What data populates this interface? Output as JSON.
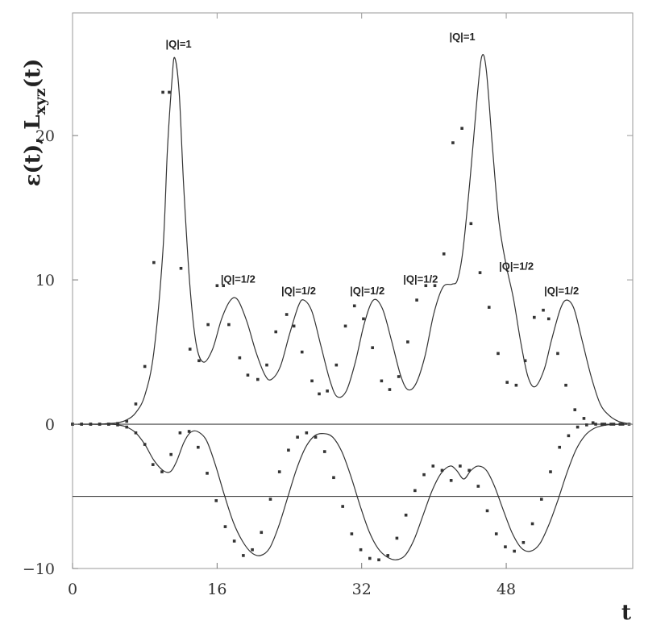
{
  "chart_data": {
    "type": "line",
    "title": "",
    "ylabel": "ε(t), L_xyz(t)",
    "ylabel_main": "ε(t), L",
    "ylabel_sub": "xyz",
    "ylabel_tail": "(t)",
    "xlabel": "t",
    "xlim": [
      0,
      62
    ],
    "ylim": [
      -10,
      28.5
    ],
    "x_ticks": [
      0,
      16,
      32,
      48
    ],
    "x_tick_labels": [
      "0",
      "16",
      "32",
      "48"
    ],
    "y_ticks": [
      -10,
      0,
      10,
      20
    ],
    "y_tick_labels": [
      "−10",
      "0",
      "10",
      "20"
    ],
    "horizontal_lines": [
      0,
      -5
    ],
    "grid": false,
    "legend": "none",
    "annotations": [
      {
        "text": "|Q|=1",
        "x": 10.3,
        "y": 26.1
      },
      {
        "text": "|Q|=1/2",
        "x": 16.4,
        "y": 9.8
      },
      {
        "text": "|Q|=1/2",
        "x": 23.1,
        "y": 9.0
      },
      {
        "text": "|Q|=1/2",
        "x": 30.7,
        "y": 9.0
      },
      {
        "text": "|Q|=1/2",
        "x": 36.6,
        "y": 9.8
      },
      {
        "text": "|Q|=1",
        "x": 41.7,
        "y": 26.6
      },
      {
        "text": "|Q|=1/2",
        "x": 47.2,
        "y": 10.7
      },
      {
        "text": "|Q|=1/2",
        "x": 52.2,
        "y": 9.0
      }
    ],
    "series": [
      {
        "values": [
          [
            0,
            0
          ],
          [
            1,
            0
          ],
          [
            2,
            0
          ],
          [
            3,
            0
          ],
          [
            4,
            0.05
          ],
          [
            5,
            0.1
          ],
          [
            6,
            0.3
          ],
          [
            7,
            0.8
          ],
          [
            8,
            2.0
          ],
          [
            9,
            5.0
          ],
          [
            10,
            12.0
          ],
          [
            10.5,
            19.0
          ],
          [
            11,
            23.8
          ],
          [
            11.3,
            25.4
          ],
          [
            11.8,
            23.0
          ],
          [
            12.3,
            16.5
          ],
          [
            13,
            9.5
          ],
          [
            13.7,
            5.5
          ],
          [
            14.5,
            4.3
          ],
          [
            15.5,
            5.2
          ],
          [
            16.5,
            7.3
          ],
          [
            17.5,
            8.6
          ],
          [
            18.3,
            8.6
          ],
          [
            19.3,
            7.1
          ],
          [
            20.3,
            5.0
          ],
          [
            21.3,
            3.4
          ],
          [
            22,
            3.1
          ],
          [
            23,
            4.0
          ],
          [
            24,
            6.2
          ],
          [
            25,
            8.2
          ],
          [
            25.6,
            8.6
          ],
          [
            26.5,
            7.8
          ],
          [
            27.5,
            5.4
          ],
          [
            28.5,
            3.0
          ],
          [
            29.3,
            1.9
          ],
          [
            30.3,
            2.3
          ],
          [
            31.3,
            4.3
          ],
          [
            32.3,
            7.0
          ],
          [
            33.3,
            8.6
          ],
          [
            34.3,
            8.0
          ],
          [
            35.3,
            5.8
          ],
          [
            36.3,
            3.4
          ],
          [
            37.1,
            2.4
          ],
          [
            38,
            2.8
          ],
          [
            39,
            4.7
          ],
          [
            40,
            7.7
          ],
          [
            41,
            9.5
          ],
          [
            42,
            9.7
          ],
          [
            42.6,
            10.0
          ],
          [
            43.2,
            12.0
          ],
          [
            44,
            17.0
          ],
          [
            44.8,
            22.8
          ],
          [
            45.3,
            25.5
          ],
          [
            45.8,
            24.5
          ],
          [
            46.5,
            19.0
          ],
          [
            47.2,
            14.0
          ],
          [
            48,
            11.0
          ],
          [
            48.8,
            8.7
          ],
          [
            49.6,
            5.7
          ],
          [
            50.4,
            3.3
          ],
          [
            51.2,
            2.6
          ],
          [
            52.2,
            3.8
          ],
          [
            53,
            5.8
          ],
          [
            54,
            8.0
          ],
          [
            54.7,
            8.6
          ],
          [
            55.5,
            8.0
          ],
          [
            56.4,
            5.8
          ],
          [
            57.4,
            3.3
          ],
          [
            58.4,
            1.4
          ],
          [
            59.4,
            0.6
          ],
          [
            60.4,
            0.2
          ],
          [
            61.4,
            0.05
          ],
          [
            62,
            0
          ]
        ]
      },
      {
        "values": [
          [
            0,
            0
          ],
          [
            4,
            0
          ],
          [
            5,
            -0.05
          ],
          [
            6,
            -0.2
          ],
          [
            7,
            -0.6
          ],
          [
            8,
            -1.4
          ],
          [
            9,
            -2.5
          ],
          [
            10,
            -3.2
          ],
          [
            10.8,
            -3.3
          ],
          [
            11.5,
            -2.6
          ],
          [
            12.3,
            -1.3
          ],
          [
            13,
            -0.6
          ],
          [
            13.8,
            -0.5
          ],
          [
            14.8,
            -1.1
          ],
          [
            15.8,
            -2.8
          ],
          [
            16.8,
            -4.9
          ],
          [
            17.8,
            -6.8
          ],
          [
            18.8,
            -8.1
          ],
          [
            19.8,
            -8.9
          ],
          [
            20.8,
            -9.1
          ],
          [
            21.8,
            -8.6
          ],
          [
            22.8,
            -7.1
          ],
          [
            23.8,
            -5.1
          ],
          [
            24.8,
            -3.1
          ],
          [
            25.8,
            -1.6
          ],
          [
            26.8,
            -0.8
          ],
          [
            27.8,
            -0.65
          ],
          [
            28.8,
            -0.9
          ],
          [
            29.8,
            -1.9
          ],
          [
            30.8,
            -3.6
          ],
          [
            31.8,
            -5.6
          ],
          [
            32.8,
            -7.4
          ],
          [
            33.8,
            -8.6
          ],
          [
            34.8,
            -9.2
          ],
          [
            35.8,
            -9.4
          ],
          [
            36.8,
            -9.1
          ],
          [
            37.8,
            -8.0
          ],
          [
            38.8,
            -6.3
          ],
          [
            39.8,
            -4.6
          ],
          [
            40.8,
            -3.4
          ],
          [
            41.8,
            -2.9
          ],
          [
            42.5,
            -3.2
          ],
          [
            43.3,
            -3.8
          ],
          [
            44.1,
            -3.2
          ],
          [
            44.9,
            -2.9
          ],
          [
            45.8,
            -3.2
          ],
          [
            46.7,
            -4.3
          ],
          [
            47.7,
            -6.0
          ],
          [
            48.7,
            -7.6
          ],
          [
            49.7,
            -8.6
          ],
          [
            50.7,
            -8.8
          ],
          [
            51.7,
            -8.3
          ],
          [
            52.7,
            -7.0
          ],
          [
            53.7,
            -5.3
          ],
          [
            54.7,
            -3.4
          ],
          [
            55.7,
            -1.8
          ],
          [
            56.7,
            -0.8
          ],
          [
            57.7,
            -0.3
          ],
          [
            58.7,
            -0.1
          ],
          [
            59.7,
            -0.02
          ],
          [
            62,
            0
          ]
        ]
      }
    ],
    "markers": [
      [
        [
          0,
          0
        ],
        [
          1,
          0
        ],
        [
          2,
          0
        ],
        [
          3,
          0
        ],
        [
          4,
          0
        ],
        [
          5,
          0.05
        ],
        [
          6,
          0.2
        ],
        [
          7,
          1.4
        ],
        [
          8,
          4.0
        ],
        [
          9,
          11.2
        ],
        [
          10,
          23.0
        ],
        [
          10.7,
          23.0
        ],
        [
          12,
          10.8
        ],
        [
          13,
          5.2
        ],
        [
          14,
          4.4
        ],
        [
          15,
          6.9
        ],
        [
          16,
          9.6
        ],
        [
          16.7,
          9.6
        ],
        [
          17.3,
          6.9
        ],
        [
          18.5,
          4.6
        ],
        [
          19.4,
          3.4
        ],
        [
          20.5,
          3.1
        ],
        [
          21.5,
          4.1
        ],
        [
          22.5,
          6.4
        ],
        [
          23.7,
          7.6
        ],
        [
          24.5,
          6.8
        ],
        [
          25.4,
          5.0
        ],
        [
          26.5,
          3.0
        ],
        [
          27.3,
          2.1
        ],
        [
          28.2,
          2.3
        ],
        [
          29.2,
          4.1
        ],
        [
          30.2,
          6.8
        ],
        [
          31.2,
          8.2
        ],
        [
          32.2,
          7.3
        ],
        [
          33.2,
          5.3
        ],
        [
          34.2,
          3.0
        ],
        [
          35.1,
          2.4
        ],
        [
          36.1,
          3.3
        ],
        [
          37.1,
          5.7
        ],
        [
          38.1,
          8.6
        ],
        [
          39.1,
          9.6
        ],
        [
          40.1,
          9.6
        ],
        [
          41.1,
          11.8
        ],
        [
          42.1,
          19.5
        ],
        [
          43.1,
          20.5
        ],
        [
          44.1,
          13.9
        ],
        [
          45.1,
          10.5
        ],
        [
          46.1,
          8.1
        ],
        [
          47.1,
          4.9
        ],
        [
          48.1,
          2.9
        ],
        [
          49.1,
          2.7
        ],
        [
          50.1,
          4.4
        ],
        [
          51.1,
          7.4
        ],
        [
          52.1,
          7.9
        ],
        [
          52.7,
          7.3
        ],
        [
          53.7,
          4.9
        ],
        [
          54.6,
          2.7
        ],
        [
          55.6,
          1.0
        ],
        [
          56.6,
          0.4
        ],
        [
          57.6,
          0.1
        ],
        [
          58.6,
          0
        ],
        [
          59.6,
          0
        ],
        [
          60.6,
          0
        ],
        [
          61.6,
          0
        ]
      ],
      [
        [
          0,
          0
        ],
        [
          1,
          0
        ],
        [
          2,
          0
        ],
        [
          3,
          0
        ],
        [
          4,
          0
        ],
        [
          5,
          -0.05
        ],
        [
          6,
          -0.2
        ],
        [
          7,
          -0.6
        ],
        [
          8,
          -1.4
        ],
        [
          8.9,
          -2.8
        ],
        [
          9.9,
          -3.3
        ],
        [
          10.9,
          -2.1
        ],
        [
          11.9,
          -0.6
        ],
        [
          12.9,
          -0.5
        ],
        [
          13.9,
          -1.6
        ],
        [
          14.9,
          -3.4
        ],
        [
          15.9,
          -5.3
        ],
        [
          16.9,
          -7.1
        ],
        [
          17.9,
          -8.1
        ],
        [
          18.9,
          -9.1
        ],
        [
          19.9,
          -8.7
        ],
        [
          20.9,
          -7.5
        ],
        [
          21.9,
          -5.2
        ],
        [
          22.9,
          -3.3
        ],
        [
          23.9,
          -1.8
        ],
        [
          24.9,
          -0.9
        ],
        [
          25.9,
          -0.6
        ],
        [
          26.9,
          -0.9
        ],
        [
          27.9,
          -1.9
        ],
        [
          28.9,
          -3.7
        ],
        [
          29.9,
          -5.7
        ],
        [
          30.9,
          -7.6
        ],
        [
          31.9,
          -8.7
        ],
        [
          32.9,
          -9.3
        ],
        [
          33.9,
          -9.4
        ],
        [
          34.9,
          -9.1
        ],
        [
          35.9,
          -7.9
        ],
        [
          36.9,
          -6.3
        ],
        [
          37.9,
          -4.6
        ],
        [
          38.9,
          -3.5
        ],
        [
          39.9,
          -2.9
        ],
        [
          40.9,
          -3.2
        ],
        [
          41.9,
          -3.9
        ],
        [
          42.9,
          -2.9
        ],
        [
          43.9,
          -3.2
        ],
        [
          44.9,
          -4.3
        ],
        [
          45.9,
          -6.0
        ],
        [
          46.9,
          -7.6
        ],
        [
          47.9,
          -8.5
        ],
        [
          48.9,
          -8.8
        ],
        [
          49.9,
          -8.2
        ],
        [
          50.9,
          -6.9
        ],
        [
          51.9,
          -5.2
        ],
        [
          52.9,
          -3.3
        ],
        [
          53.9,
          -1.6
        ],
        [
          54.9,
          -0.8
        ],
        [
          55.9,
          -0.2
        ],
        [
          56.9,
          -0.05
        ],
        [
          57.9,
          0
        ],
        [
          58.9,
          0
        ],
        [
          59.9,
          0
        ],
        [
          60.9,
          0
        ]
      ]
    ]
  }
}
